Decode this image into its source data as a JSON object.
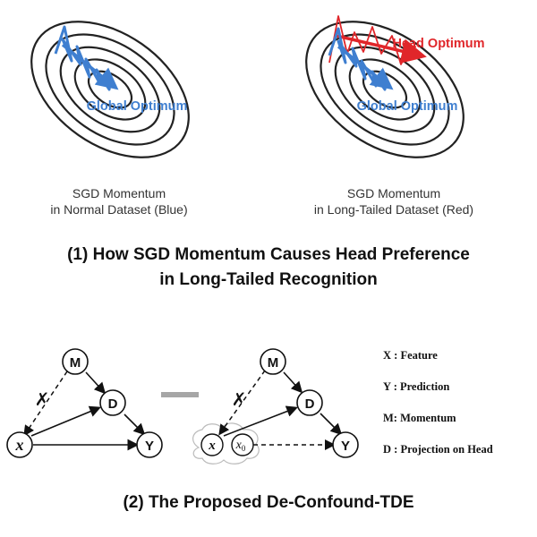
{
  "panel1": {
    "left": {
      "label": "Global Optimum",
      "caption_line1": "SGD Momentum",
      "caption_line2": "in Normal Dataset (Blue)"
    },
    "right": {
      "label_global": "Global Optimum",
      "label_head": "Head Optimum",
      "caption_line1": "SGD Momentum",
      "caption_line2": "in Long-Tailed Dataset (Red)"
    },
    "title_line1": "(1) How SGD Momentum Causes Head Preference",
    "title_line2": "in Long-Tailed Recognition"
  },
  "panel2": {
    "nodes": {
      "m": "M",
      "d": "D",
      "x": "x",
      "y": "Y",
      "x0": "x",
      "x0_sub": "0"
    },
    "cut_mark": "✗",
    "legend": [
      "X : Feature",
      "Y : Prediction",
      "M:  Momentum",
      "D : Projection on Head"
    ],
    "title": "(2) The Proposed De-Confound-TDE"
  },
  "colors": {
    "blue": "#3f7fd0",
    "red": "#e0262a",
    "gray_minus": "#a6a6a6",
    "ink": "#111111"
  }
}
